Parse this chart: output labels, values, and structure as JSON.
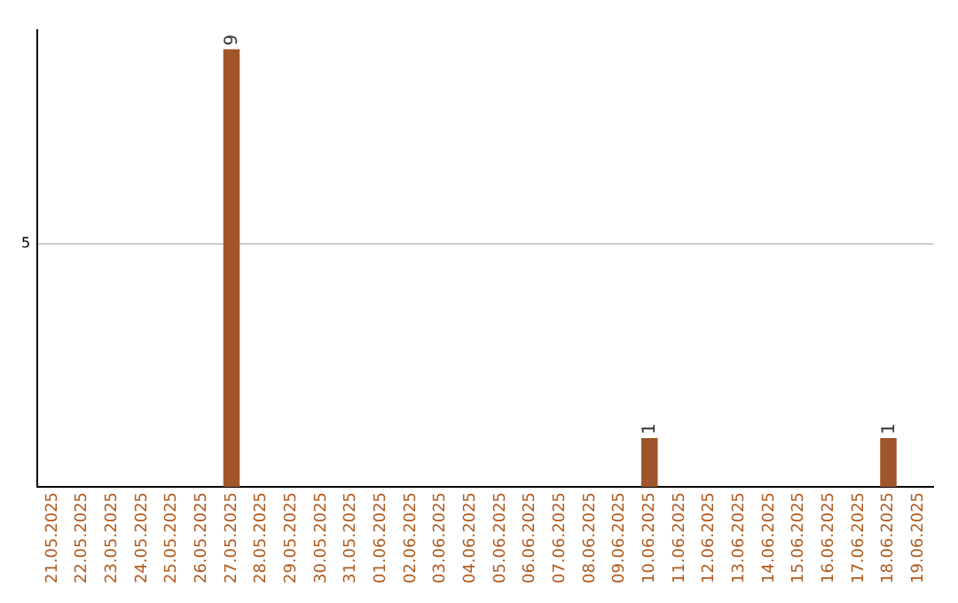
{
  "chart_data": {
    "type": "bar",
    "categories": [
      "21.05.2025",
      "22.05.2025",
      "23.05.2025",
      "24.05.2025",
      "25.05.2025",
      "26.05.2025",
      "27.05.2025",
      "28.05.2025",
      "29.05.2025",
      "30.05.2025",
      "31.05.2025",
      "01.06.2025",
      "02.06.2025",
      "03.06.2025",
      "04.06.2025",
      "05.06.2025",
      "06.06.2025",
      "07.06.2025",
      "08.06.2025",
      "09.06.2025",
      "10.06.2025",
      "11.06.2025",
      "12.06.2025",
      "13.06.2025",
      "14.06.2025",
      "15.06.2025",
      "16.06.2025",
      "17.06.2025",
      "18.06.2025",
      "19.06.2025"
    ],
    "values": [
      0,
      0,
      0,
      0,
      0,
      0,
      9,
      0,
      0,
      0,
      0,
      0,
      0,
      0,
      0,
      0,
      0,
      0,
      0,
      0,
      1,
      0,
      0,
      0,
      0,
      0,
      0,
      0,
      1,
      0
    ],
    "value_labels": [
      null,
      null,
      null,
      null,
      null,
      null,
      "9",
      null,
      null,
      null,
      null,
      null,
      null,
      null,
      null,
      null,
      null,
      null,
      null,
      null,
      "1",
      null,
      null,
      null,
      null,
      null,
      null,
      null,
      "1",
      null
    ],
    "color": "#a0562a",
    "ylim": [
      0,
      9.4
    ],
    "yticks": [
      5
    ],
    "grid": "y",
    "legend": false
  }
}
